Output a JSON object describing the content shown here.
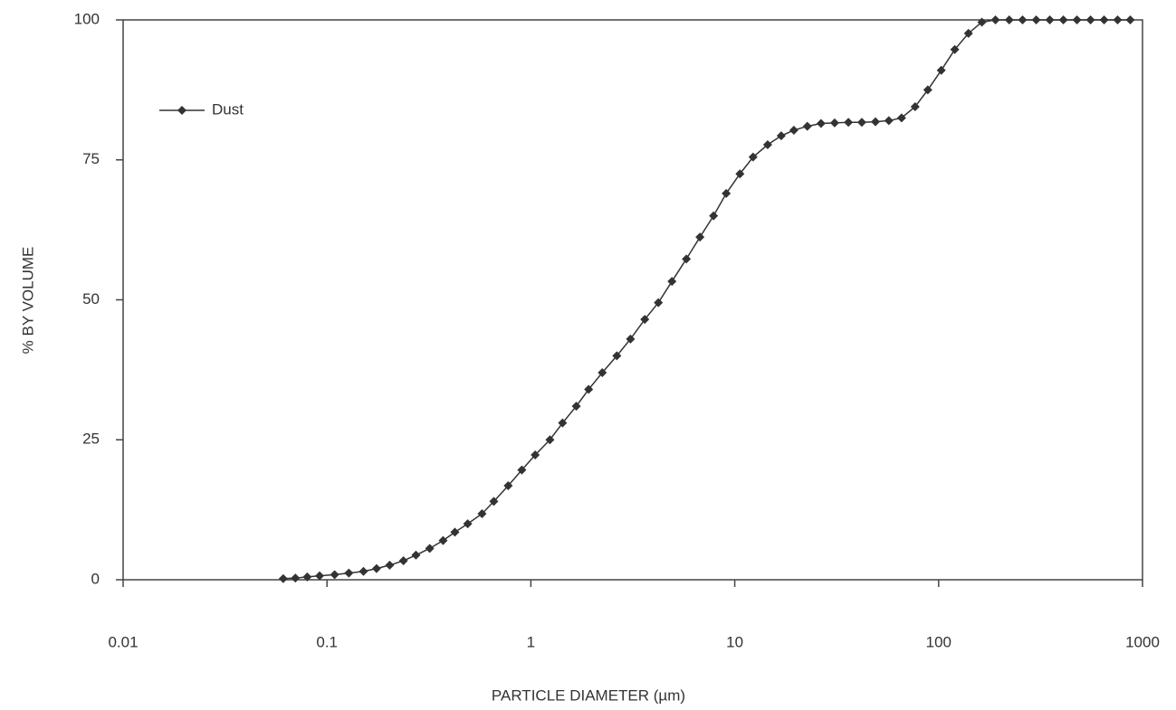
{
  "chart_data": {
    "type": "line",
    "xlabel": "PARTICLE DIAMETER (µm)",
    "ylabel": "% BY VOLUME",
    "xscale": "log",
    "xlim": [
      0.01,
      1000
    ],
    "xticks": [
      0.01,
      0.1,
      1,
      10,
      100,
      1000
    ],
    "ylim": [
      0,
      100
    ],
    "yticks": [
      0,
      25,
      50,
      75,
      100
    ],
    "legend": "upper left",
    "series": [
      {
        "name": "Dust",
        "color": "#333333",
        "x": [
          0.061,
          0.07,
          0.08,
          0.092,
          0.109,
          0.128,
          0.151,
          0.175,
          0.203,
          0.237,
          0.273,
          0.319,
          0.371,
          0.424,
          0.49,
          0.576,
          0.658,
          0.774,
          0.903,
          1.05,
          1.24,
          1.43,
          1.67,
          1.92,
          2.24,
          2.64,
          3.08,
          3.62,
          4.22,
          4.92,
          5.79,
          6.75,
          7.87,
          9.08,
          10.6,
          12.3,
          14.5,
          16.9,
          19.5,
          22.7,
          26.5,
          30.9,
          36.1,
          42.0,
          49.0,
          57.0,
          65.8,
          76.7,
          88.5,
          103,
          120,
          140,
          163,
          190,
          222,
          258,
          301,
          351,
          409,
          477,
          556,
          648,
          755,
          871
        ],
        "values": [
          0.2,
          0.3,
          0.5,
          0.7,
          0.9,
          1.2,
          1.5,
          2,
          2.6,
          3.4,
          4.4,
          5.6,
          7,
          8.5,
          10,
          11.8,
          14,
          16.8,
          19.6,
          22.3,
          25,
          28,
          31,
          34,
          37,
          40,
          43,
          46.5,
          49.5,
          53.3,
          57.3,
          61.2,
          65,
          69,
          72.5,
          75.5,
          77.7,
          79.3,
          80.3,
          81,
          81.5,
          81.6,
          81.7,
          81.7,
          81.8,
          82,
          82.5,
          84.5,
          87.5,
          91,
          94.7,
          97.6,
          99.6,
          100,
          100,
          100,
          100,
          100,
          100,
          100,
          100,
          100,
          100,
          100
        ]
      }
    ]
  }
}
